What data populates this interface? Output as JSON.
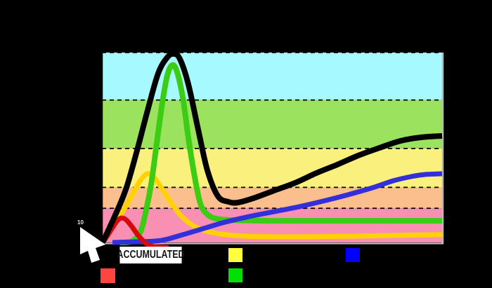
{
  "background": "#000000",
  "y_axis_label": "10",
  "legend": {
    "items": [
      {
        "id": "accumulated",
        "label": "ACCUMULATED",
        "swatch": "#000000",
        "highlighted": true
      },
      {
        "id": "yellow-series",
        "label": "",
        "swatch": "#FFFF3D",
        "highlighted": false
      },
      {
        "id": "blue-series",
        "label": "",
        "swatch": "#0000FF",
        "highlighted": false
      },
      {
        "id": "red-series",
        "label": "",
        "swatch": "#FF4540",
        "highlighted": false
      },
      {
        "id": "green-series",
        "label": "",
        "swatch": "#00E000",
        "highlighted": false
      }
    ]
  },
  "cursor": {
    "icon": "arrow-pointer",
    "color": "#FFFFFF"
  },
  "chart_data": {
    "type": "line",
    "title": "",
    "xlabel": "",
    "ylabel": "",
    "x_range": [
      0,
      100
    ],
    "y_range": [
      0,
      100
    ],
    "grid": "dashed horizontal lines at band boundaries",
    "legend_position": "bottom",
    "bands": [
      {
        "name": "pink-zone",
        "color": "#FA8FB4",
        "from": 0,
        "to": 18
      },
      {
        "name": "orange-zone",
        "color": "#FBBF8D",
        "from": 18,
        "to": 29
      },
      {
        "name": "yellow-zone",
        "color": "#FAF07D",
        "from": 29,
        "to": 49.5
      },
      {
        "name": "green-zone",
        "color": "#9BE25F",
        "from": 49.5,
        "to": 75
      },
      {
        "name": "cyan-zone",
        "color": "#A6FAFF",
        "from": 75,
        "to": 100
      }
    ],
    "series": [
      {
        "name": "yellow-series",
        "color": "#FFD200",
        "width": 7,
        "points": [
          [
            0.2,
            0
          ],
          [
            3.1,
            7.7
          ],
          [
            5.6,
            14.8
          ],
          [
            8.3,
            23.2
          ],
          [
            10.7,
            31
          ],
          [
            12.6,
            35.4
          ],
          [
            13.8,
            36.2
          ],
          [
            15.5,
            33.9
          ],
          [
            18,
            27.3
          ],
          [
            20.7,
            19.9
          ],
          [
            23.3,
            14
          ],
          [
            26.2,
            9.6
          ],
          [
            30,
            6.3
          ],
          [
            35.1,
            4.4
          ],
          [
            42.4,
            3.3
          ],
          [
            56.8,
            3
          ],
          [
            73.3,
            3.3
          ],
          [
            85.7,
            3.7
          ],
          [
            100,
            4.1
          ]
        ]
      },
      {
        "name": "green-series",
        "color": "#3DCC14",
        "width": 8,
        "points": [
          [
            5.2,
            0
          ],
          [
            8.9,
            0.7
          ],
          [
            11.4,
            5.9
          ],
          [
            13,
            17
          ],
          [
            14.5,
            31
          ],
          [
            15.9,
            49.4
          ],
          [
            17.6,
            71.6
          ],
          [
            19.2,
            87.8
          ],
          [
            20.7,
            93.4
          ],
          [
            22.1,
            89.7
          ],
          [
            23.8,
            76
          ],
          [
            25.4,
            55.4
          ],
          [
            27.1,
            36.2
          ],
          [
            28.9,
            20.7
          ],
          [
            31,
            14.8
          ],
          [
            33.7,
            12.5
          ],
          [
            38.2,
            11.8
          ],
          [
            48.6,
            11.4
          ],
          [
            63,
            11.4
          ],
          [
            85.7,
            11.4
          ],
          [
            100,
            11.4
          ]
        ]
      },
      {
        "name": "blue-series",
        "color": "#3330DB",
        "width": 7,
        "points": [
          [
            3.1,
            0
          ],
          [
            11.4,
            0.4
          ],
          [
            17.6,
            1.1
          ],
          [
            23.8,
            4.1
          ],
          [
            30,
            7.4
          ],
          [
            36.2,
            10.7
          ],
          [
            43.4,
            13.7
          ],
          [
            50.6,
            16.2
          ],
          [
            57.9,
            18.8
          ],
          [
            65.1,
            21.8
          ],
          [
            72.3,
            25.1
          ],
          [
            79.5,
            28.8
          ],
          [
            85.7,
            32.5
          ],
          [
            90.9,
            34.7
          ],
          [
            95,
            35.8
          ],
          [
            100,
            36.2
          ]
        ]
      },
      {
        "name": "red-series",
        "color": "#D60A0A",
        "width": 7,
        "points": [
          [
            0.2,
            0
          ],
          [
            1.7,
            3.7
          ],
          [
            3.1,
            7.7
          ],
          [
            4.5,
            11.4
          ],
          [
            5.8,
            12.9
          ],
          [
            7.2,
            11.8
          ],
          [
            8.9,
            8.1
          ],
          [
            10.5,
            4.1
          ],
          [
            12,
            1.1
          ],
          [
            13.4,
            -1.1
          ],
          [
            15.5,
            -2.2
          ],
          [
            19.6,
            -2.6
          ]
        ]
      },
      {
        "name": "accumulated",
        "color": "#000000",
        "width": 8,
        "points": [
          [
            0.2,
            0
          ],
          [
            4.1,
            15.1
          ],
          [
            7.2,
            28.8
          ],
          [
            10.3,
            48.3
          ],
          [
            13.4,
            69.4
          ],
          [
            16.5,
            88.9
          ],
          [
            19.2,
            97.4
          ],
          [
            21.1,
            99.3
          ],
          [
            22.9,
            96.7
          ],
          [
            25.4,
            83.4
          ],
          [
            28.3,
            59.4
          ],
          [
            31,
            38
          ],
          [
            34.1,
            24.4
          ],
          [
            37.2,
            21.4
          ],
          [
            39.9,
            21
          ],
          [
            44.4,
            23.2
          ],
          [
            50.6,
            27.3
          ],
          [
            56.8,
            31.4
          ],
          [
            63,
            36.5
          ],
          [
            69.2,
            41
          ],
          [
            75.4,
            45.8
          ],
          [
            81.6,
            49.8
          ],
          [
            87.8,
            53.5
          ],
          [
            94,
            55.4
          ],
          [
            100,
            56.1
          ]
        ]
      }
    ]
  }
}
